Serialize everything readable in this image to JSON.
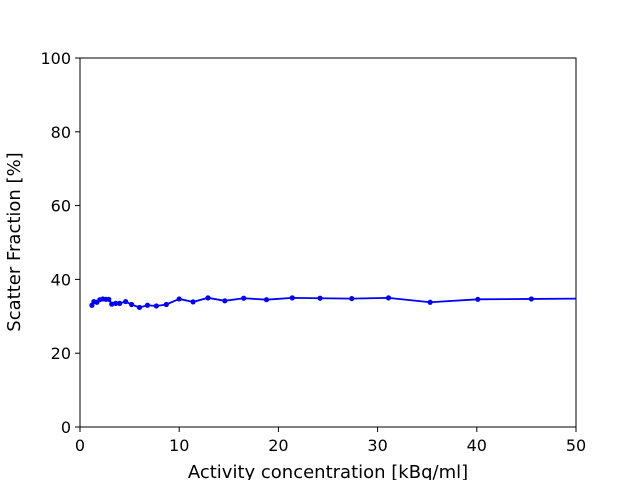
{
  "chart_data": {
    "type": "line",
    "title": "",
    "xlabel": "Activity concentration [kBq/ml]",
    "ylabel": "Scatter Fraction [%]",
    "xlim": [
      0,
      50
    ],
    "ylim": [
      0,
      100
    ],
    "xticks": [
      0,
      10,
      20,
      30,
      40,
      50
    ],
    "yticks": [
      0,
      20,
      40,
      60,
      80,
      100
    ],
    "grid": false,
    "color": "#0000ff",
    "series": [
      {
        "x": [
          1.2,
          1.4,
          1.7,
          2.0,
          2.3,
          2.6,
          2.9,
          3.2,
          3.6,
          4.0,
          4.6,
          5.2,
          6.0,
          6.8,
          7.7,
          8.7,
          10.0,
          11.4,
          12.9,
          14.6,
          16.5,
          18.8,
          21.4,
          24.2,
          27.4,
          31.1,
          35.3,
          40.1,
          45.5,
          51.0
        ],
        "y": [
          33.0,
          34.0,
          33.8,
          34.5,
          34.7,
          34.6,
          34.6,
          33.3,
          33.5,
          33.5,
          34.0,
          33.2,
          32.4,
          33.0,
          32.8,
          33.2,
          34.7,
          33.9,
          35.0,
          34.2,
          34.9,
          34.5,
          35.0,
          34.9,
          34.8,
          35.0,
          33.8,
          34.6,
          34.7,
          34.8
        ]
      }
    ]
  }
}
